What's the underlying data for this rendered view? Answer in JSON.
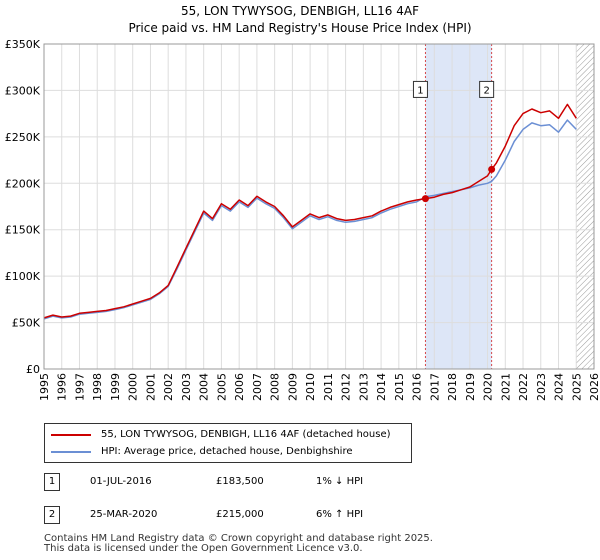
{
  "header": {
    "line1": "55, LON TYWYSOG, DENBIGH, LL16 4AF",
    "line2": "Price paid vs. HM Land Registry's House Price Index (HPI)"
  },
  "colors": {
    "property": "#cc0000",
    "hpi": "#6b8fd4",
    "shade": "#dde6f7",
    "grid": "#dddddd"
  },
  "chart_data": {
    "type": "line",
    "title": "Price paid vs. HM Land Registry's House Price Index (HPI)",
    "xlim": [
      1995,
      2026
    ],
    "ylim": [
      0,
      350000
    ],
    "x_ticks": [
      1995,
      1996,
      1997,
      1998,
      1999,
      2000,
      2001,
      2002,
      2003,
      2004,
      2005,
      2006,
      2007,
      2008,
      2009,
      2010,
      2011,
      2012,
      2013,
      2014,
      2015,
      2016,
      2017,
      2018,
      2019,
      2020,
      2021,
      2022,
      2023,
      2024,
      2025,
      2026
    ],
    "y_ticks": [
      {
        "value": 0,
        "label": "£0"
      },
      {
        "value": 50000,
        "label": "£50K"
      },
      {
        "value": 100000,
        "label": "£100K"
      },
      {
        "value": 150000,
        "label": "£150K"
      },
      {
        "value": 200000,
        "label": "£200K"
      },
      {
        "value": 250000,
        "label": "£250K"
      },
      {
        "value": 300000,
        "label": "£300K"
      },
      {
        "value": 350000,
        "label": "£350K"
      }
    ],
    "shaded_range": [
      2016.5,
      2020.23
    ],
    "forecast_hatch_from": 2025.0,
    "series": [
      {
        "name": "55, LON TYWYSOG, DENBIGH, LL16 4AF (detached house)",
        "color": "#cc0000",
        "x": [
          1995.0,
          1995.5,
          1996.0,
          1996.5,
          1997.0,
          1997.5,
          1998.0,
          1998.5,
          1999.0,
          1999.5,
          2000.0,
          2000.5,
          2001.0,
          2001.5,
          2002.0,
          2002.5,
          2003.0,
          2003.5,
          2004.0,
          2004.5,
          2005.0,
          2005.5,
          2006.0,
          2006.5,
          2007.0,
          2007.5,
          2008.0,
          2008.5,
          2009.0,
          2009.5,
          2010.0,
          2010.5,
          2011.0,
          2011.5,
          2012.0,
          2012.5,
          2013.0,
          2013.5,
          2014.0,
          2014.5,
          2015.0,
          2015.5,
          2016.0,
          2016.5,
          2017.0,
          2017.5,
          2018.0,
          2018.5,
          2019.0,
          2019.5,
          2020.0,
          2020.23,
          2020.5,
          2021.0,
          2021.5,
          2022.0,
          2022.5,
          2023.0,
          2023.5,
          2024.0,
          2024.5,
          2025.0
        ],
        "values": [
          55000,
          58000,
          56000,
          57000,
          60000,
          61000,
          62000,
          63000,
          65000,
          67000,
          70000,
          73000,
          76000,
          82000,
          90000,
          110000,
          130000,
          150000,
          170000,
          162000,
          178000,
          172000,
          182000,
          176000,
          186000,
          180000,
          175000,
          165000,
          153000,
          160000,
          167000,
          163000,
          166000,
          162000,
          160000,
          161000,
          163000,
          165000,
          170000,
          174000,
          177000,
          180000,
          182000,
          183500,
          185000,
          188000,
          190000,
          193000,
          196000,
          202000,
          208000,
          215000,
          222000,
          240000,
          262000,
          275000,
          280000,
          276000,
          278000,
          270000,
          285000,
          270000
        ]
      },
      {
        "name": "HPI: Average price, detached house, Denbighshire",
        "color": "#6b8fd4",
        "x": [
          1995.0,
          1995.5,
          1996.0,
          1996.5,
          1997.0,
          1997.5,
          1998.0,
          1998.5,
          1999.0,
          1999.5,
          2000.0,
          2000.5,
          2001.0,
          2001.5,
          2002.0,
          2002.5,
          2003.0,
          2003.5,
          2004.0,
          2004.5,
          2005.0,
          2005.5,
          2006.0,
          2006.5,
          2007.0,
          2007.5,
          2008.0,
          2008.5,
          2009.0,
          2009.5,
          2010.0,
          2010.5,
          2011.0,
          2011.5,
          2012.0,
          2012.5,
          2013.0,
          2013.5,
          2014.0,
          2014.5,
          2015.0,
          2015.5,
          2016.0,
          2016.5,
          2017.0,
          2017.5,
          2018.0,
          2018.5,
          2019.0,
          2019.5,
          2020.0,
          2020.23,
          2020.5,
          2021.0,
          2021.5,
          2022.0,
          2022.5,
          2023.0,
          2023.5,
          2024.0,
          2024.5,
          2025.0
        ],
        "values": [
          54000,
          57000,
          55000,
          56000,
          59000,
          60000,
          61000,
          62000,
          64000,
          66000,
          69000,
          72000,
          75000,
          81000,
          89000,
          108000,
          128000,
          148000,
          168000,
          160000,
          176000,
          170000,
          180000,
          174000,
          184000,
          178000,
          173000,
          163000,
          151000,
          158000,
          165000,
          161000,
          164000,
          160000,
          158000,
          159000,
          161000,
          163000,
          168000,
          172000,
          175000,
          178000,
          180000,
          185500,
          187000,
          189000,
          191000,
          193000,
          195000,
          198000,
          200000,
          202000,
          208000,
          225000,
          245000,
          258000,
          265000,
          262000,
          263000,
          255000,
          268000,
          258000
        ]
      }
    ],
    "sales": [
      {
        "num": "1",
        "x": 2016.5,
        "y": 183500
      },
      {
        "num": "2",
        "x": 2020.23,
        "y": 215000
      }
    ],
    "marker_label_y": 300000
  },
  "legend": {
    "property_label": "55, LON TYWYSOG, DENBIGH, LL16 4AF (detached house)",
    "hpi_label": "HPI: Average price, detached house, Denbighshire"
  },
  "sales_table": [
    {
      "num": "1",
      "date": "01-JUL-2016",
      "price": "£183,500",
      "hpi": "1% ↓ HPI"
    },
    {
      "num": "2",
      "date": "25-MAR-2020",
      "price": "£215,000",
      "hpi": "6% ↑ HPI"
    }
  ],
  "footer": {
    "line1": "Contains HM Land Registry data © Crown copyright and database right 2025.",
    "line2": "This data is licensed under the Open Government Licence v3.0."
  }
}
